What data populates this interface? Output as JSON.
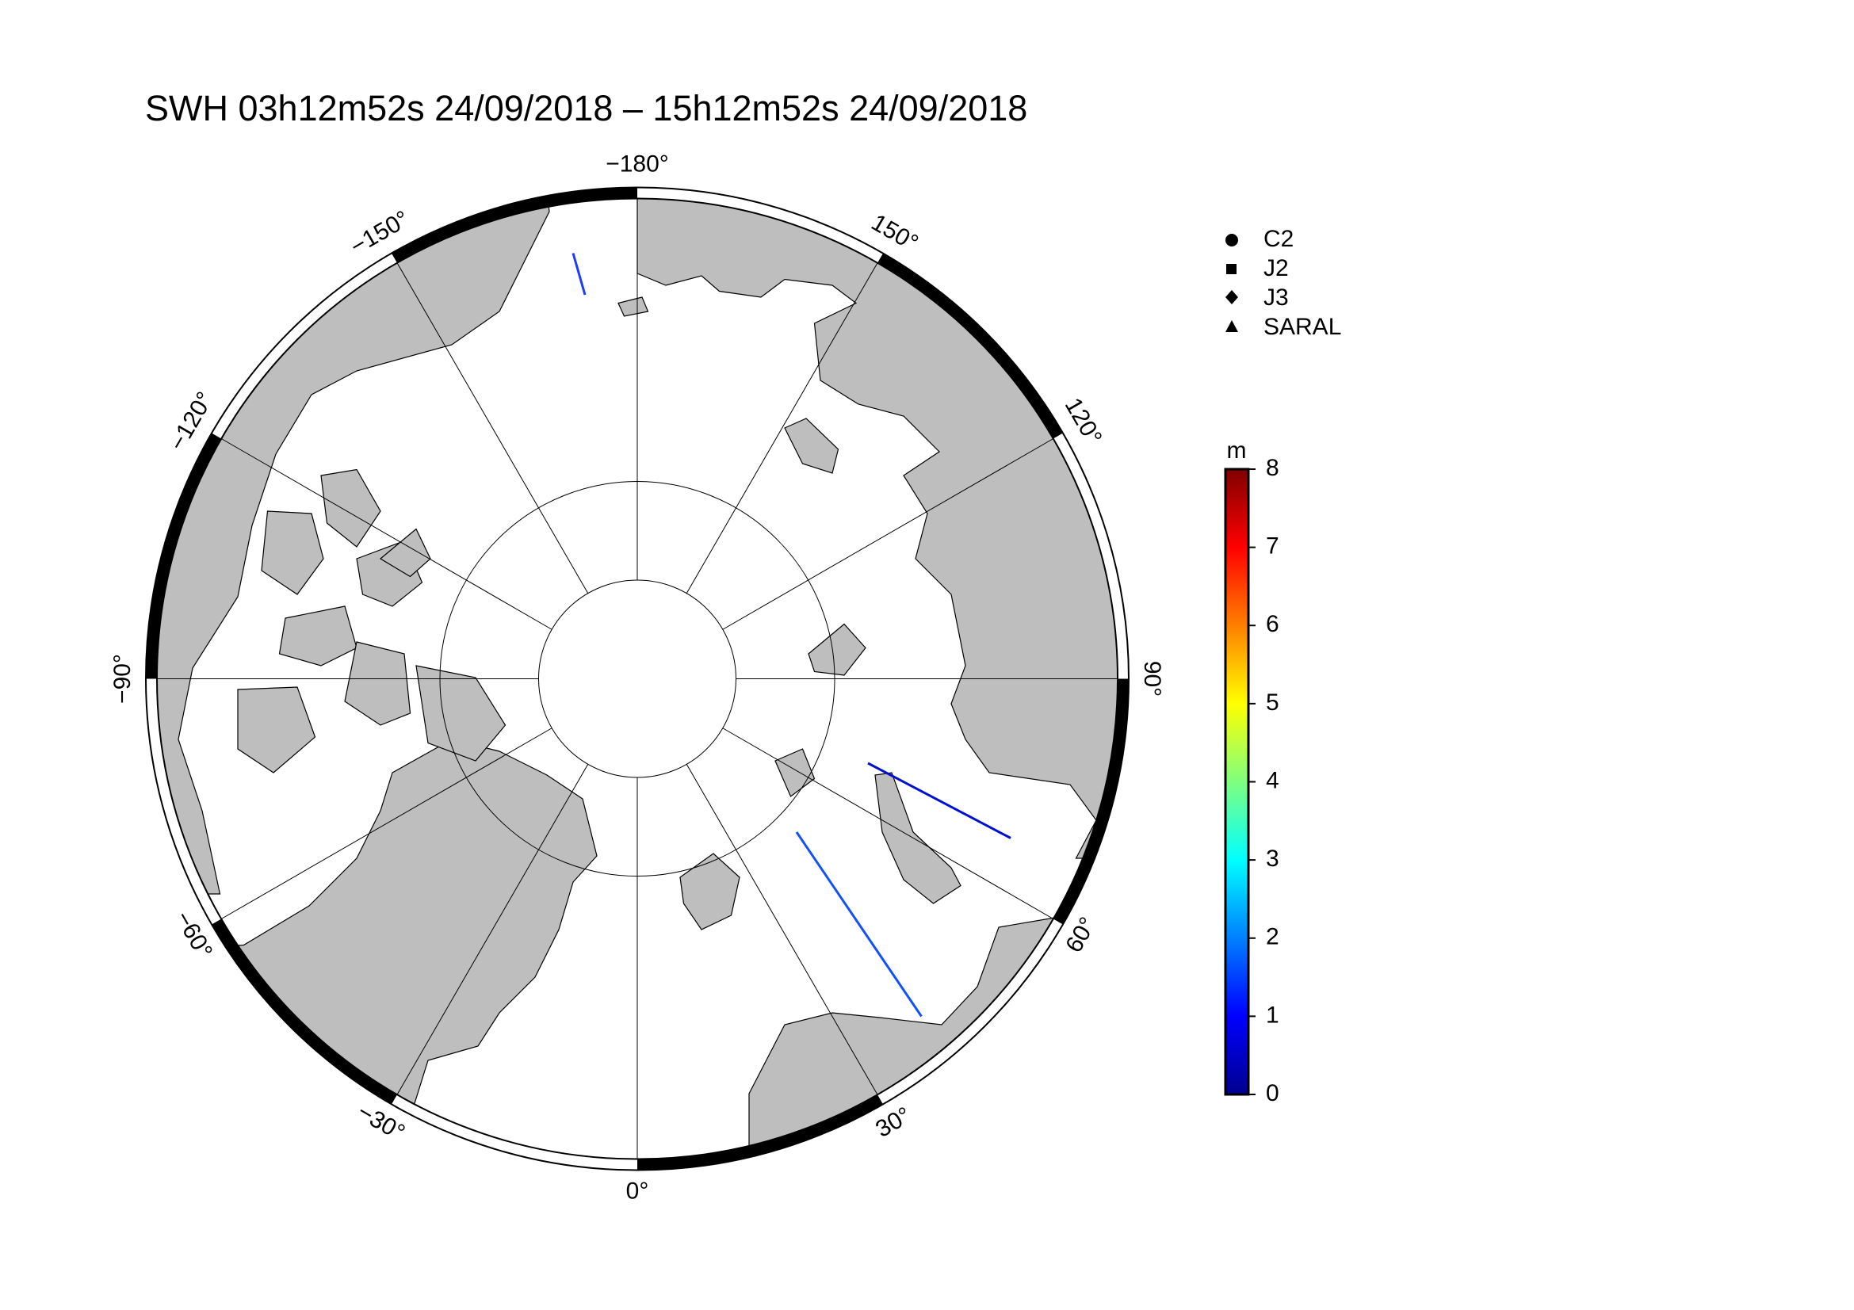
{
  "title": "SWH 03h12m52s 24/09/2018 – 15h12m52s 24/09/2018",
  "map": {
    "type": "polar-map",
    "lon_ticks": [
      {
        "value": -180,
        "label": "−180°"
      },
      {
        "value": -150,
        "label": "−150°"
      },
      {
        "value": -120,
        "label": "−120°"
      },
      {
        "value": -90,
        "label": "−90°"
      },
      {
        "value": -60,
        "label": "−60°"
      },
      {
        "value": -30,
        "label": "−30°"
      },
      {
        "value": 0,
        "label": "0°"
      },
      {
        "value": 30,
        "label": "30°"
      },
      {
        "value": 60,
        "label": "60°"
      },
      {
        "value": 90,
        "label": "90°"
      },
      {
        "value": 120,
        "label": "120°"
      },
      {
        "value": 150,
        "label": "150°"
      }
    ],
    "land_color": "#bebebe"
  },
  "legend": [
    "C2",
    "J2",
    "J3",
    "SARAL"
  ],
  "colorbar": {
    "unit": "m",
    "range": [
      0,
      8
    ],
    "ticks": [
      0,
      1,
      2,
      3,
      4,
      5,
      6,
      7,
      8
    ]
  }
}
